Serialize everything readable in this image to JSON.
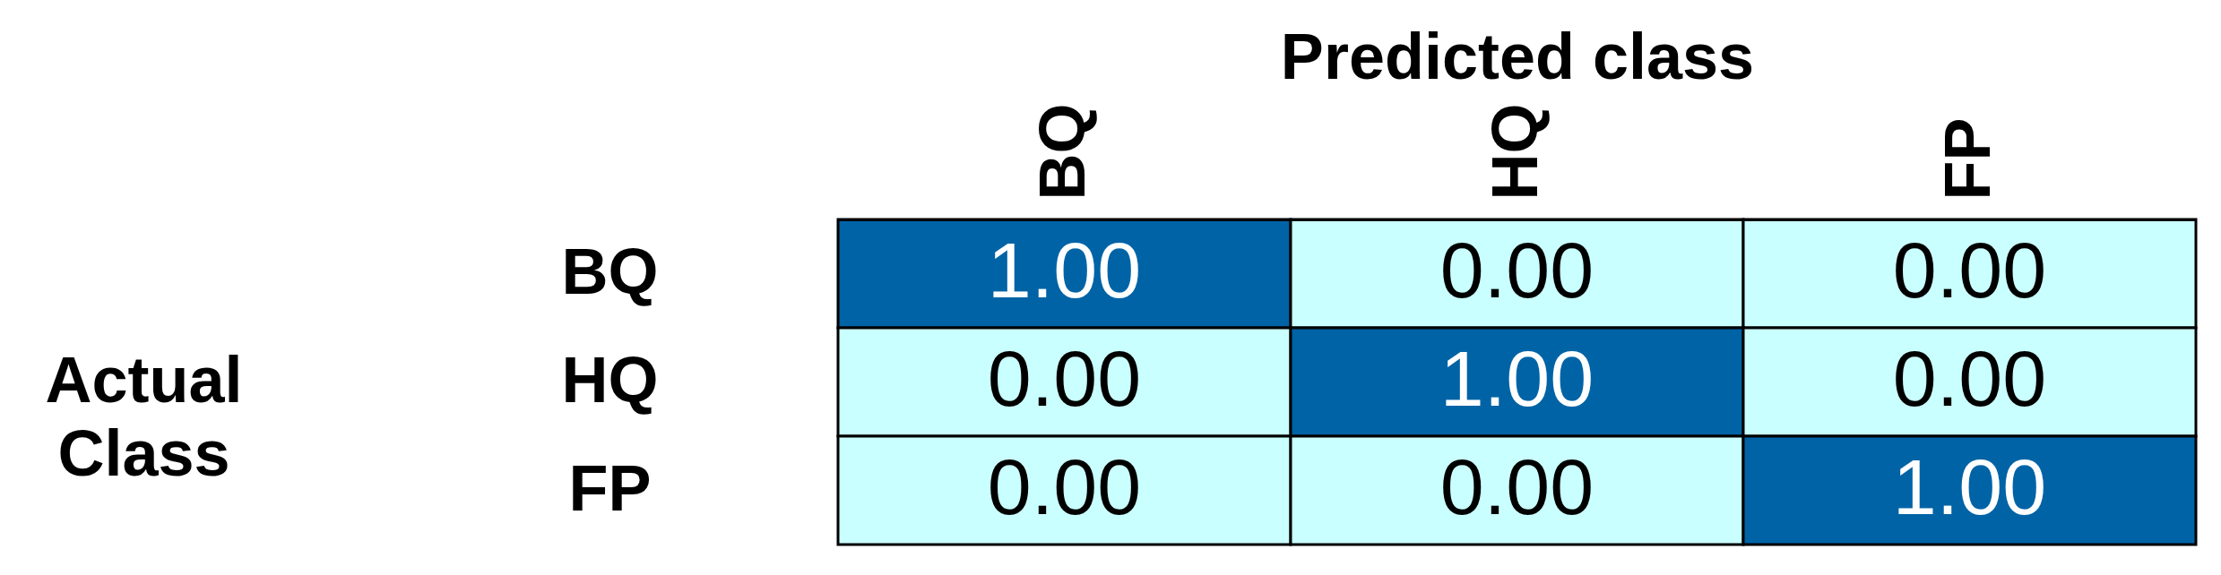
{
  "chart_data": {
    "type": "heatmap",
    "title": "Predicted class",
    "ylabel": "Actual Class",
    "color": "#0063a6",
    "categories": [
      "BQ",
      "HQ",
      "FP"
    ],
    "y_categories": [
      "BQ",
      "HQ",
      "FP"
    ],
    "cells": [
      [
        1,
        0,
        0
      ],
      [
        0,
        1,
        0
      ],
      [
        0,
        0,
        1
      ]
    ],
    "cell_labels": [
      [
        "1.00",
        "0.00",
        "0.00"
      ],
      [
        "0.00",
        "1.00",
        "0.00"
      ],
      [
        "0.00",
        "0.00",
        "1.00"
      ]
    ]
  }
}
